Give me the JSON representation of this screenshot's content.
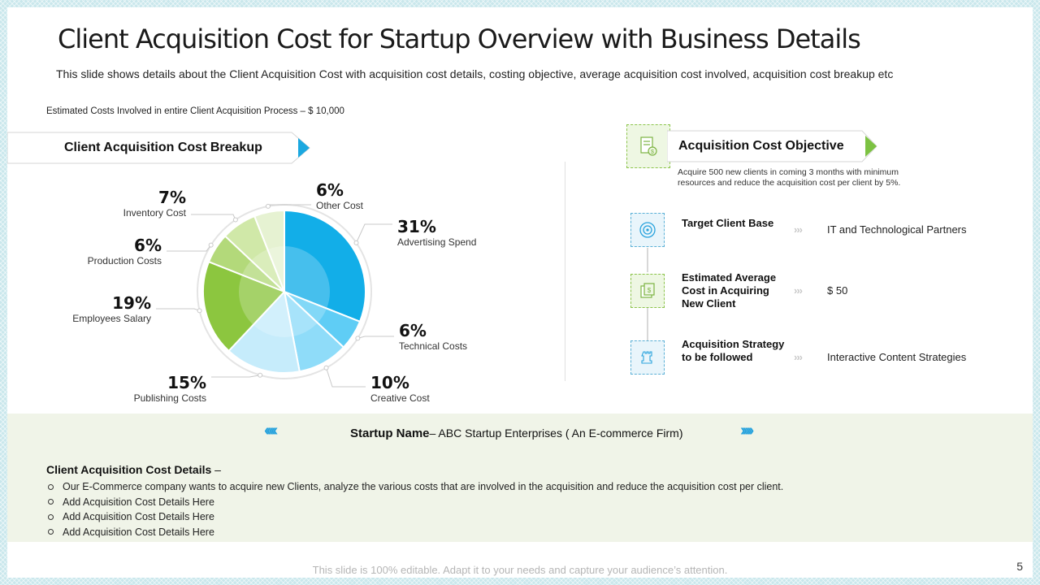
{
  "title": "Client Acquisition Cost for Startup Overview with Business Details",
  "subtitle": "This slide shows details about the Client Acquisition Cost with acquisition cost details, costing objective, average acquisition cost involved, acquisition cost breakup etc",
  "estimated_note": "Estimated Costs Involved in entire Client Acquisition Process – $ 10,000",
  "breakup_title": "Client Acquisition Cost Breakup",
  "chart_data": {
    "type": "pie",
    "title": "Client Acquisition Cost Breakup",
    "slices": [
      {
        "label": "Advertising Spend",
        "pct_label": "31%",
        "value": 31,
        "color": "#12aee8"
      },
      {
        "label": "Technical Costs",
        "pct_label": "6%",
        "value": 6,
        "color": "#5fcdf5"
      },
      {
        "label": "Creative Cost",
        "pct_label": "10%",
        "value": 10,
        "color": "#8fdcf9"
      },
      {
        "label": "Publishing Costs",
        "pct_label": "15%",
        "value": 15,
        "color": "#c6ecfb"
      },
      {
        "label": "Employees Salary",
        "pct_label": "19%",
        "value": 19,
        "color": "#8cc63f"
      },
      {
        "label": "Production Costs",
        "pct_label": "6%",
        "value": 6,
        "color": "#b3d97a"
      },
      {
        "label": "Inventory Cost",
        "pct_label": "7%",
        "value": 7,
        "color": "#d0e8a8"
      },
      {
        "label": "Other Cost",
        "pct_label": "6%",
        "value": 6,
        "color": "#e6f2d2"
      }
    ]
  },
  "objective": {
    "title": "Acquisition Cost Objective",
    "description": "Acquire 500 new clients in coming 3 months with minimum resources and reduce the acquisition cost per client by 5%.",
    "rows": [
      {
        "label": "Target Client Base",
        "value": "IT and Technological Partners",
        "icon": "target-icon"
      },
      {
        "label": "Estimated Average Cost in Acquiring New Client",
        "value": "$ 50",
        "icon": "money-icon"
      },
      {
        "label": "Acquisition Strategy to be followed",
        "value": "Interactive Content Strategies",
        "icon": "chess-rook-icon"
      }
    ],
    "chevrons": "›››"
  },
  "startup": {
    "label": "Startup Name",
    "value": "– ABC Startup Enterprises ( An E-commerce Firm)",
    "arrows_left": "‹‹‹‹‹",
    "arrows_right": "›››››"
  },
  "details": {
    "heading": "Client Acquisition Cost Details",
    "heading_suffix": " –",
    "items": [
      "Our E-Commerce company wants to acquire new Clients, analyze the various costs that are involved  in the acquisition and reduce the acquisition cost per client.",
      "Add Acquisition Cost Details Here",
      "Add Acquisition Cost Details Here",
      "Add Acquisition Cost Details Here"
    ]
  },
  "footer": "This slide is 100% editable. Adapt it to your needs and capture your audience’s attention.",
  "page_number": "5"
}
